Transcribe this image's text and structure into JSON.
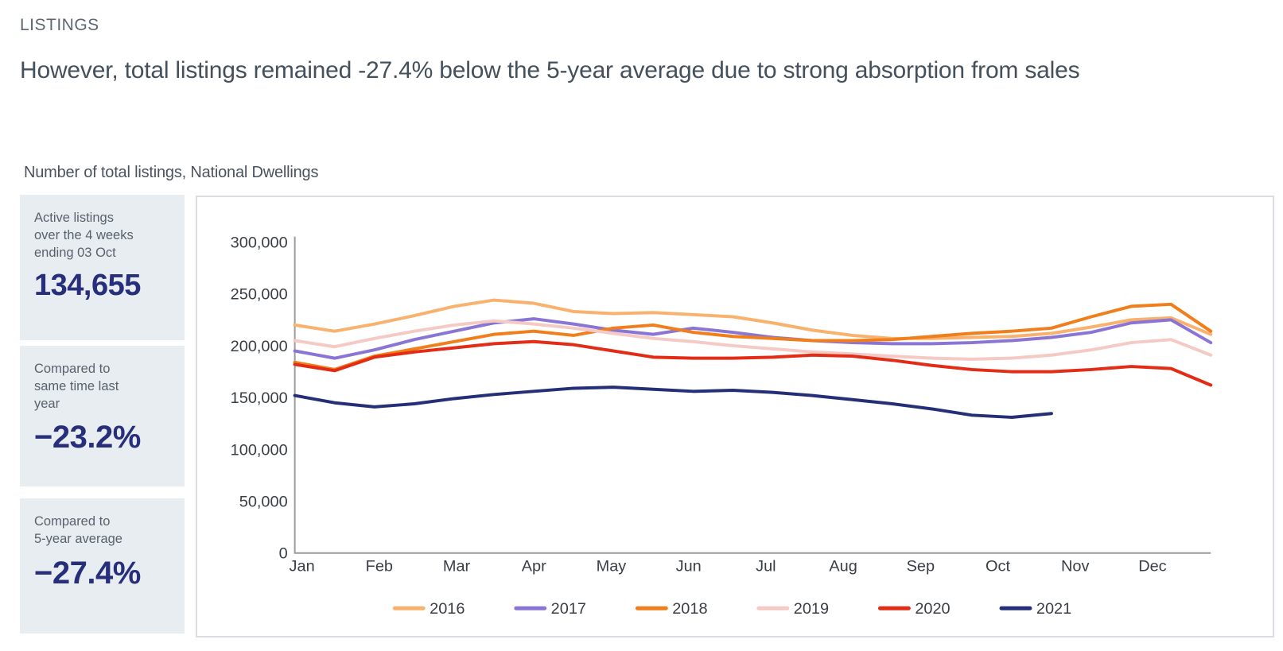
{
  "page": {
    "eyebrow": "LISTINGS",
    "headline": "However, total listings remained -27.4% below the 5-year average due to strong absorption from sales",
    "chart_title": "Number of total listings, National Dwellings"
  },
  "stat_boxes": [
    {
      "label": "Active listings\nover the 4 weeks\nending 03 Oct",
      "value": "134,655"
    },
    {
      "label": "Compared to\nsame time last\nyear",
      "value": "−23.2%"
    },
    {
      "label": "Compared to\n5-year average",
      "value": "−27.4%"
    }
  ],
  "colors": {
    "accent_navy": "#272f7b",
    "stat_box_bg": "#e8edf1",
    "axis_gray": "#9b9b9b",
    "tick_text": "#383e44",
    "panel_border": "#d9dde1"
  },
  "chart_data": {
    "type": "line",
    "title": "Number of total listings, National Dwellings",
    "xlabel": "",
    "ylabel": "",
    "x_tick_labels": [
      "Jan",
      "Feb",
      "Mar",
      "Apr",
      "May",
      "Jun",
      "Jul",
      "Aug",
      "Sep",
      "Oct",
      "Nov",
      "Dec"
    ],
    "y_ticks": [
      0,
      50000,
      100000,
      150000,
      200000,
      250000,
      300000
    ],
    "ylim": [
      0,
      300000
    ],
    "grid": false,
    "legend_position": "bottom",
    "points_per_month": 2,
    "series": [
      {
        "name": "2016",
        "color": "#F8B26D",
        "values": [
          220000,
          214000,
          221000,
          229000,
          238000,
          244000,
          241000,
          233000,
          231000,
          232000,
          230000,
          228000,
          222000,
          215000,
          210000,
          207000,
          207000,
          208000,
          209000,
          212000,
          218000,
          225000,
          227000,
          211000
        ]
      },
      {
        "name": "2017",
        "color": "#8A75D4",
        "values": [
          195000,
          188000,
          196000,
          206000,
          214000,
          222000,
          226000,
          221000,
          215000,
          211000,
          217000,
          213000,
          208000,
          205000,
          203000,
          202000,
          202000,
          203000,
          205000,
          208000,
          213000,
          222000,
          225000,
          203000
        ]
      },
      {
        "name": "2018",
        "color": "#F07E1A",
        "values": [
          184000,
          177000,
          190000,
          197000,
          204000,
          211000,
          214000,
          210000,
          217000,
          220000,
          213000,
          209000,
          207000,
          205000,
          205000,
          206000,
          209000,
          212000,
          214000,
          217000,
          228000,
          238000,
          240000,
          214000
        ]
      },
      {
        "name": "2019",
        "color": "#F5C9C4",
        "values": [
          205000,
          199000,
          207000,
          214000,
          220000,
          224000,
          221000,
          217000,
          212000,
          207000,
          204000,
          200000,
          197000,
          194000,
          192000,
          190000,
          188000,
          187000,
          188000,
          191000,
          196000,
          203000,
          206000,
          191000
        ]
      },
      {
        "name": "2020",
        "color": "#E22C16",
        "values": [
          182000,
          176000,
          189000,
          194000,
          198000,
          202000,
          204000,
          201000,
          195000,
          189000,
          188000,
          188000,
          189000,
          191000,
          190000,
          186000,
          181000,
          177000,
          175000,
          175000,
          177000,
          180000,
          178000,
          162000
        ]
      },
      {
        "name": "2021",
        "color": "#252F77",
        "values": [
          152000,
          145000,
          141000,
          144000,
          149000,
          153000,
          156000,
          159000,
          160000,
          158000,
          156000,
          157000,
          155000,
          152000,
          148000,
          144000,
          139000,
          133000,
          131000,
          134655
        ]
      }
    ]
  }
}
